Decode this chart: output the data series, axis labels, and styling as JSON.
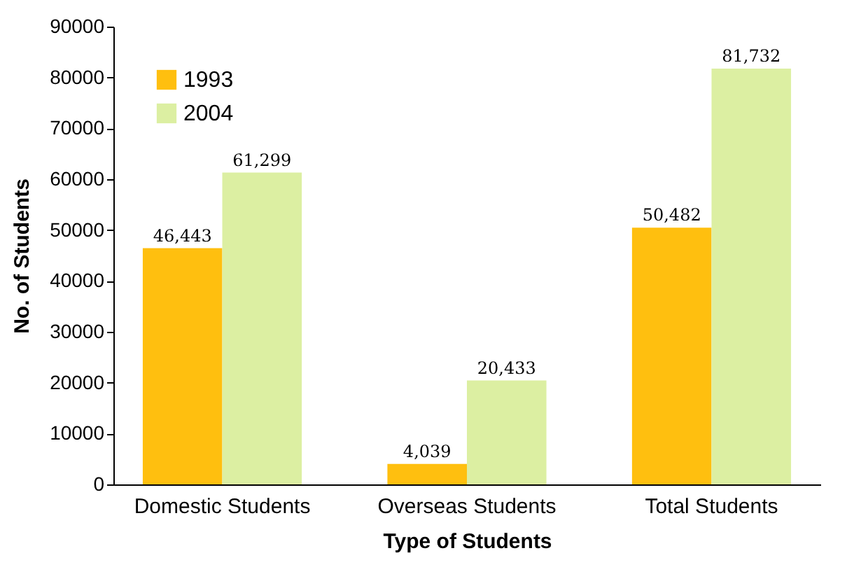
{
  "chart_data": {
    "type": "bar",
    "xlabel": "Type of Students",
    "ylabel": "No. of Students",
    "categories": [
      "Domestic Students",
      "Overseas Students",
      "Total Students"
    ],
    "series": [
      {
        "name": "1993",
        "color": "#ffbf0f",
        "values": [
          46443,
          4039,
          50482
        ],
        "value_labels": [
          "46,443",
          "4,039",
          "50,482"
        ]
      },
      {
        "name": "2004",
        "color": "#dcefa2",
        "values": [
          61299,
          20433,
          81732
        ],
        "value_labels": [
          "61,299",
          "20,433",
          "81,732"
        ]
      }
    ],
    "ylim": [
      0,
      90000
    ],
    "yticks": [
      0,
      10000,
      20000,
      30000,
      40000,
      50000,
      60000,
      70000,
      80000,
      90000
    ],
    "grid": false,
    "legend": "top left"
  }
}
